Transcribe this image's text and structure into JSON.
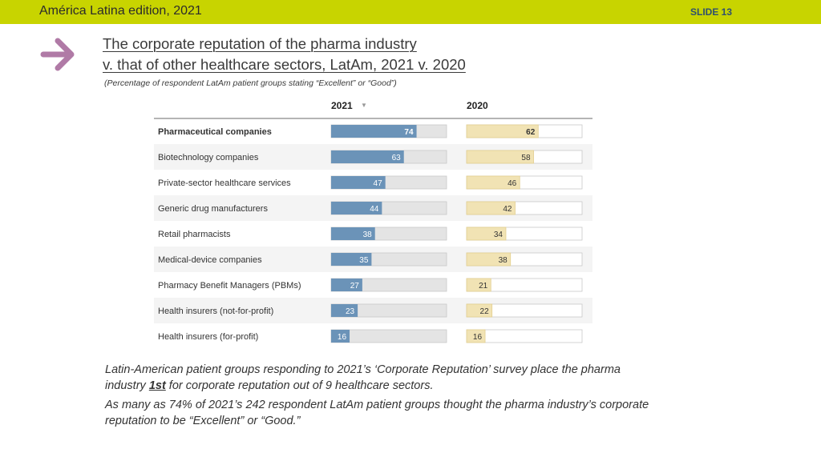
{
  "header": {
    "edition": "América Latina edition, 2021",
    "slide": "SLIDE 13"
  },
  "icons": {
    "arrow": "right-arrow-icon"
  },
  "title": {
    "line1": "The corporate reputation of the pharma industry",
    "line2": "v. that of other healthcare sectors, LatAm, 2021 v. 2020"
  },
  "subtitle": "(Percentage of respondent LatAm patient groups stating “Excellent” or “Good”)",
  "colors": {
    "accent_bar": "#c8d400",
    "bar_2021": "#6b93b8",
    "bar_2020": "#f1e3b4",
    "track": "#e4e4e4",
    "arrow": "#b07aa6"
  },
  "chart_data": {
    "type": "bar",
    "orientation": "horizontal",
    "sort_indicator": "▼",
    "categories": [
      "Pharmaceutical companies",
      "Biotechnology companies",
      "Private-sector healthcare services",
      "Generic drug manufacturers",
      "Retail pharmacists",
      "Medical-device companies",
      "Pharmacy Benefit Managers (PBMs)",
      "Health insurers (not-for-profit)",
      "Health insurers (for-profit)"
    ],
    "series": [
      {
        "name": "2021",
        "values": [
          74,
          63,
          47,
          44,
          38,
          35,
          27,
          23,
          16
        ]
      },
      {
        "name": "2020",
        "values": [
          62,
          58,
          46,
          42,
          34,
          38,
          21,
          22,
          16
        ]
      }
    ],
    "xlim": [
      0,
      100
    ],
    "highlight_category": "Pharmaceutical companies"
  },
  "footer": {
    "p1_before": "Latin-American patient groups responding to 2021’s ‘Corporate Reputation’ survey place the pharma industry ",
    "p1_strong": "1st",
    "p1_after": " for corporate reputation out of 9 healthcare sectors.",
    "p2": "As many as 74% of 2021’s 242 respondent LatAm patient groups thought the pharma industry’s corporate reputation to be “Excellent” or “Good.”"
  }
}
